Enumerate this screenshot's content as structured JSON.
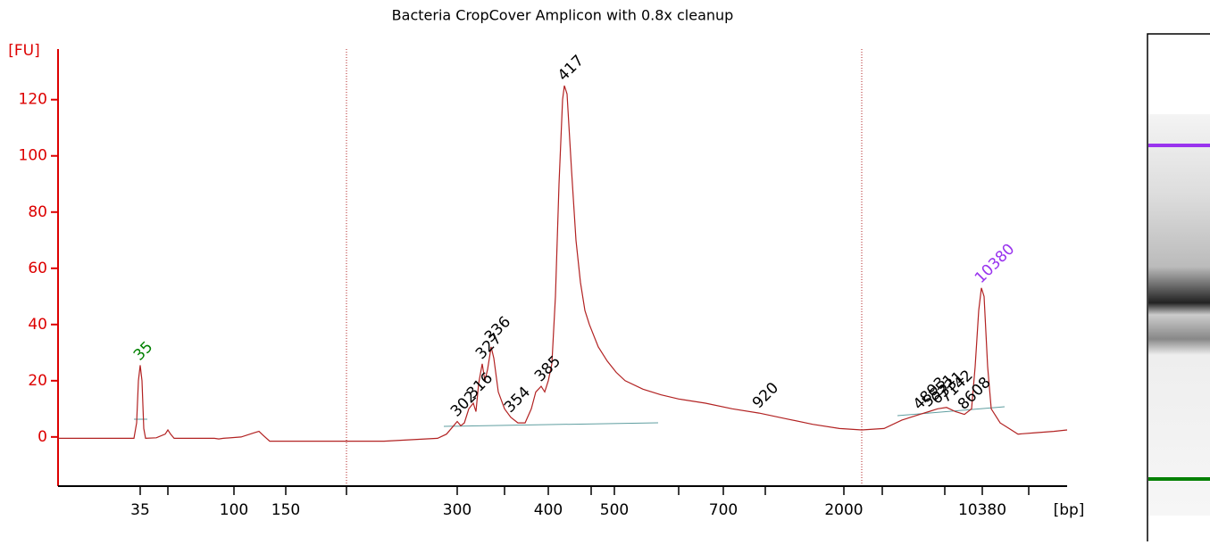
{
  "chart_data": {
    "type": "line",
    "title": "Bacteria CropCover Amplicon with 0.8x cleanup",
    "y_label": "[FU]",
    "x_label": "[bp]",
    "color": "#b22222",
    "axis_color": "#dd0000",
    "x": [
      0,
      7.5,
      8.5,
      8.8,
      9,
      9.2,
      9.4,
      9.6,
      9.8,
      11,
      12,
      12.3,
      12.6,
      13,
      17.5,
      18,
      18.5,
      20.5,
      22,
      22.5,
      23,
      23.7,
      32.3,
      36.5,
      39.5,
      42.5,
      43.5,
      44.3,
      44.7,
      45.1,
      45.5,
      46,
      46.5,
      46.8,
      47.1,
      47.5,
      47.8,
      48.1,
      48.5,
      48.8,
      49.3,
      50,
      50.7,
      51.5,
      52.3,
      53,
      53.5,
      54.1,
      54.5,
      54.9,
      55.3,
      55.7,
      56.1,
      56.5,
      56.7,
      57,
      57.5,
      58,
      58.5,
      59,
      59.5,
      60.5,
      61.5,
      62.5,
      63.5,
      65.5,
      67.5,
      69.5,
      72.5,
      75.5,
      78.5,
      81.5,
      84.5,
      87.5,
      90,
      92.5,
      94.5,
      96.5,
      97.5,
      98.5,
      99.5,
      100.5,
      101.5,
      102.3,
      102.7,
      103.1,
      103.4,
      103.7,
      104.1,
      104.5,
      105.5,
      106.5,
      107.5,
      109.5,
      111.5,
      113
    ],
    "values": [
      -0.5,
      -0.5,
      -0.5,
      5,
      20,
      25.5,
      20,
      3,
      -0.5,
      -0.3,
      1,
      2.5,
      1,
      -0.5,
      -0.5,
      -0.7,
      -0.5,
      0,
      1.5,
      2,
      0.5,
      -1.5,
      -1.5,
      -1.5,
      -1,
      -0.5,
      1,
      4,
      5.5,
      4,
      5,
      10,
      12,
      9,
      19,
      26,
      20,
      24,
      32,
      28,
      16,
      10,
      7,
      5,
      5,
      10,
      16,
      18,
      16,
      20,
      26,
      50,
      90,
      120,
      125,
      122,
      95,
      70,
      55,
      45,
      40,
      32,
      27,
      23,
      20,
      17,
      15,
      13.5,
      12,
      10,
      8.5,
      6.5,
      4.5,
      3,
      2.5,
      3,
      6,
      8,
      9,
      10,
      10.5,
      9,
      8,
      10,
      25,
      45,
      53,
      50,
      25,
      10,
      5,
      3,
      1,
      1.5,
      2,
      2.5
    ],
    "xlim": [
      0,
      113
    ],
    "ylim": [
      -17.5,
      138
    ],
    "yticks": [
      0,
      20,
      40,
      60,
      80,
      100,
      120
    ],
    "xticks": [
      {
        "value": 9.2,
        "label": "35"
      },
      {
        "value": 12.3,
        "label": null
      },
      {
        "value": 19.7,
        "label": "100"
      },
      {
        "value": 25.5,
        "label": "150"
      },
      {
        "value": 32.3,
        "label": null
      },
      {
        "value": 44.7,
        "label": "300"
      },
      {
        "value": 50,
        "label": null
      },
      {
        "value": 54.9,
        "label": "400"
      },
      {
        "value": 59.7,
        "label": null
      },
      {
        "value": 62.3,
        "label": "500"
      },
      {
        "value": 69.5,
        "label": null
      },
      {
        "value": 74.5,
        "label": "700"
      },
      {
        "value": 79.2,
        "label": null
      },
      {
        "value": 88,
        "label": "2000"
      },
      {
        "value": 92.3,
        "label": null
      },
      {
        "value": 99.3,
        "label": null
      },
      {
        "value": 103.5,
        "label": "10380"
      },
      {
        "value": 108.7,
        "label": null
      }
    ],
    "peaks": [
      {
        "label": "35",
        "x": 9.2,
        "y": 25.5,
        "color": "#008000"
      },
      {
        "label": "302",
        "x": 44.7,
        "y": 5.5,
        "color": "#000000"
      },
      {
        "label": "316",
        "x": 46.5,
        "y": 12,
        "color": "#000000"
      },
      {
        "label": "327",
        "x": 47.5,
        "y": 26,
        "color": "#000000"
      },
      {
        "label": "336",
        "x": 48.5,
        "y": 32,
        "color": "#000000"
      },
      {
        "label": "354",
        "x": 50.7,
        "y": 7,
        "color": "#000000"
      },
      {
        "label": "385",
        "x": 54.1,
        "y": 18,
        "color": "#000000"
      },
      {
        "label": "417",
        "x": 56.7,
        "y": 125,
        "color": "#000000"
      },
      {
        "label": "920",
        "x": 78.5,
        "y": 8.5,
        "color": "#000000"
      },
      {
        "label": "4893",
        "x": 96.5,
        "y": 8,
        "color": "#000000"
      },
      {
        "label": "5551",
        "x": 97.5,
        "y": 9,
        "color": "#000000"
      },
      {
        "label": "6331",
        "x": 98.5,
        "y": 10,
        "color": "#000000"
      },
      {
        "label": "7142",
        "x": 99.5,
        "y": 10.5,
        "color": "#000000"
      },
      {
        "label": "8608",
        "x": 101.5,
        "y": 8,
        "color": "#000000"
      },
      {
        "label": "10380",
        "x": 103.4,
        "y": 53,
        "color": "#9933ee"
      }
    ]
  }
}
